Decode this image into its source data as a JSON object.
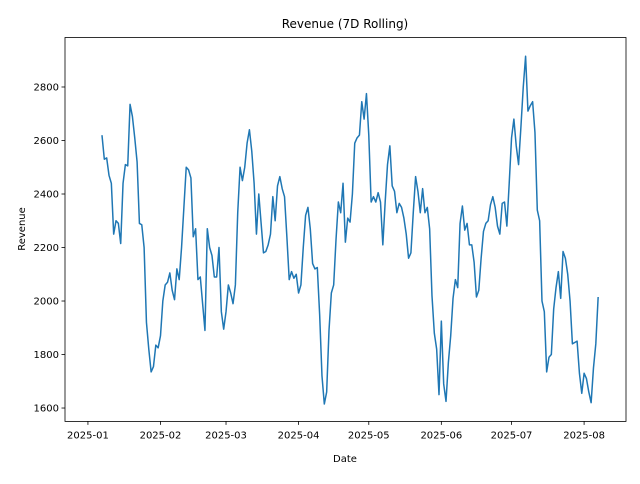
{
  "chart_data": {
    "type": "line",
    "title": "Revenue (7D Rolling)",
    "x_label": "Date",
    "y_label": "Revenue",
    "x": [
      6,
      7,
      8,
      9,
      10,
      11,
      12,
      13,
      14,
      15,
      16,
      17,
      18,
      19,
      20,
      21,
      22,
      23,
      24,
      25,
      26,
      27,
      28,
      29,
      30,
      31,
      32,
      33,
      34,
      35,
      36,
      37,
      38,
      39,
      40,
      41,
      42,
      43,
      44,
      45,
      46,
      47,
      48,
      49,
      50,
      51,
      52,
      53,
      54,
      55,
      56,
      57,
      58,
      59,
      60,
      61,
      62,
      63,
      64,
      65,
      66,
      67,
      68,
      69,
      70,
      71,
      72,
      73,
      74,
      75,
      76,
      77,
      78,
      79,
      80,
      81,
      82,
      83,
      84,
      85,
      86,
      87,
      88,
      89,
      90,
      91,
      92,
      93,
      94,
      95,
      96,
      97,
      98,
      99,
      100,
      101,
      102,
      103,
      104,
      105,
      106,
      107,
      108,
      109,
      110,
      111,
      112,
      113,
      114,
      115,
      116,
      117,
      118,
      119,
      120,
      121,
      122,
      123,
      124,
      125,
      126,
      127,
      128,
      129,
      130,
      131,
      132,
      133,
      134,
      135,
      136,
      137,
      138,
      139,
      140,
      141,
      142,
      143,
      144,
      145,
      146,
      147,
      148,
      149,
      150,
      151,
      152,
      153,
      154,
      155,
      156,
      157,
      158,
      159,
      160,
      161,
      162,
      163,
      164,
      165,
      166,
      167,
      168,
      169,
      170,
      171,
      172,
      173,
      174,
      175,
      176,
      177,
      178,
      179,
      180,
      181,
      182,
      183,
      184,
      185,
      186,
      187,
      188,
      189,
      190,
      191,
      192,
      193,
      194,
      195,
      196,
      197,
      198,
      199,
      200,
      201,
      202,
      203,
      204,
      205,
      206,
      207,
      208,
      209,
      210,
      211,
      212,
      213,
      214,
      215,
      216,
      217,
      218
    ],
    "series": [
      {
        "name": "Revenue",
        "color": "#1f77b4",
        "values": [
          2620,
          2530,
          2535,
          2470,
          2440,
          2250,
          2300,
          2290,
          2215,
          2440,
          2510,
          2505,
          2735,
          2690,
          2610,
          2520,
          2290,
          2285,
          2200,
          1920,
          1820,
          1735,
          1755,
          1835,
          1825,
          1870,
          2000,
          2060,
          2070,
          2105,
          2040,
          2005,
          2120,
          2080,
          2200,
          2350,
          2500,
          2490,
          2460,
          2240,
          2270,
          2080,
          2090,
          1990,
          1890,
          2270,
          2200,
          2170,
          2090,
          2090,
          2200,
          1960,
          1895,
          1960,
          2060,
          2030,
          1990,
          2060,
          2330,
          2500,
          2450,
          2500,
          2590,
          2640,
          2560,
          2440,
          2250,
          2400,
          2290,
          2180,
          2185,
          2210,
          2250,
          2390,
          2300,
          2430,
          2465,
          2420,
          2390,
          2240,
          2080,
          2110,
          2085,
          2100,
          2030,
          2060,
          2200,
          2320,
          2350,
          2270,
          2140,
          2120,
          2125,
          1950,
          1720,
          1615,
          1660,
          1890,
          2030,
          2060,
          2230,
          2370,
          2330,
          2440,
          2220,
          2310,
          2295,
          2400,
          2590,
          2610,
          2620,
          2745,
          2680,
          2775,
          2620,
          2370,
          2390,
          2370,
          2405,
          2370,
          2210,
          2370,
          2510,
          2580,
          2430,
          2410,
          2330,
          2365,
          2350,
          2310,
          2250,
          2160,
          2180,
          2330,
          2465,
          2410,
          2330,
          2420,
          2330,
          2350,
          2270,
          2020,
          1880,
          1820,
          1650,
          1925,
          1690,
          1625,
          1770,
          1870,
          2010,
          2080,
          2050,
          2290,
          2355,
          2265,
          2290,
          2210,
          2210,
          2145,
          2015,
          2040,
          2160,
          2260,
          2290,
          2300,
          2360,
          2390,
          2350,
          2280,
          2250,
          2365,
          2370,
          2280,
          2440,
          2610,
          2680,
          2580,
          2510,
          2650,
          2800,
          2915,
          2710,
          2730,
          2745,
          2630,
          2340,
          2300,
          2000,
          1960,
          1735,
          1790,
          1800,
          1970,
          2050,
          2110,
          2010,
          2185,
          2160,
          2100,
          2000,
          1840,
          1845,
          1850,
          1730,
          1655,
          1730,
          1710,
          1660,
          1620,
          1750,
          1840,
          2015
        ]
      }
    ],
    "xlim": [
      -9.8,
      229.9
    ],
    "xticks": [
      {
        "value": 0,
        "label": "2025-01"
      },
      {
        "value": 31,
        "label": "2025-02"
      },
      {
        "value": 59,
        "label": "2025-03"
      },
      {
        "value": 90,
        "label": "2025-04"
      },
      {
        "value": 120,
        "label": "2025-05"
      },
      {
        "value": 151,
        "label": "2025-06"
      },
      {
        "value": 181,
        "label": "2025-07"
      },
      {
        "value": 212,
        "label": "2025-08"
      }
    ],
    "ylim": [
      1550,
      2985
    ],
    "yticks": [
      1600,
      1800,
      2000,
      2200,
      2400,
      2600,
      2800
    ]
  }
}
